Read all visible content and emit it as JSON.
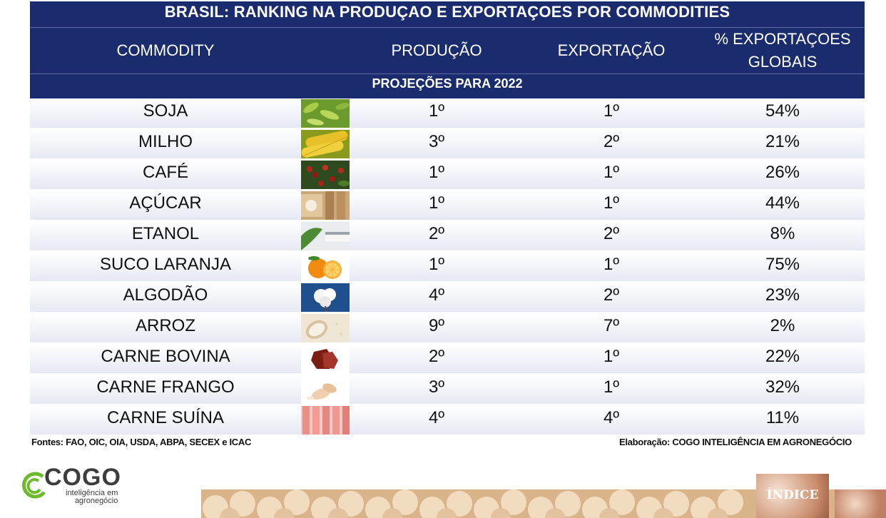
{
  "title": "BRASIL: RANKING NA PRODUÇAO E EXPORTAÇOES POR COMMODITIES",
  "headers": {
    "commodity": "COMMODITY",
    "producao": "PRODUÇÃO",
    "exportacao": "EXPORTAÇÃO",
    "pct_line1": "% EXPORTAÇOES",
    "pct_line2": "GLOBAIS"
  },
  "subtitle": "PROJEÇÕES PARA 2022",
  "rows": [
    {
      "name": "SOJA",
      "producao": "1º",
      "exportacao": "1º",
      "pct": "54%",
      "icon": "soy-icon"
    },
    {
      "name": "MILHO",
      "producao": "3º",
      "exportacao": "2º",
      "pct": "21%",
      "icon": "corn-icon"
    },
    {
      "name": "CAFÉ",
      "producao": "1º",
      "exportacao": "1º",
      "pct": "26%",
      "icon": "coffee-icon"
    },
    {
      "name": "AÇÚCAR",
      "producao": "1º",
      "exportacao": "1º",
      "pct": "44%",
      "icon": "sugar-icon"
    },
    {
      "name": "ETANOL",
      "producao": "2º",
      "exportacao": "2º",
      "pct": "8%",
      "icon": "ethanol-icon"
    },
    {
      "name": "SUCO LARANJA",
      "producao": "1º",
      "exportacao": "1º",
      "pct": "75%",
      "icon": "orange-icon"
    },
    {
      "name": "ALGODÃO",
      "producao": "4º",
      "exportacao": "2º",
      "pct": "23%",
      "icon": "cotton-icon"
    },
    {
      "name": "ARROZ",
      "producao": "9º",
      "exportacao": "7º",
      "pct": "2%",
      "icon": "rice-icon"
    },
    {
      "name": "CARNE BOVINA",
      "producao": "2º",
      "exportacao": "1º",
      "pct": "22%",
      "icon": "beef-icon"
    },
    {
      "name": "CARNE FRANGO",
      "producao": "3º",
      "exportacao": "1º",
      "pct": "32%",
      "icon": "chicken-icon"
    },
    {
      "name": "CARNE SUÍNA",
      "producao": "4º",
      "exportacao": "4º",
      "pct": "11%",
      "icon": "pork-icon"
    }
  ],
  "footer": {
    "sources": "Fontes: FAO, OIC, OIA, USDA, ABPA, SECEX e ICAC",
    "credit": "Elaboração: COGO INTELIGÊNCIA EM AGRONEGÓCIO"
  },
  "logo": {
    "name": "COGO",
    "tagline_1": "inteligência em",
    "tagline_2": "agronegócio"
  },
  "nav": {
    "index_label": "ÍNDICE"
  },
  "colors": {
    "header_navy": "#1a2c6e",
    "logo_green": "#6dbb2d"
  }
}
